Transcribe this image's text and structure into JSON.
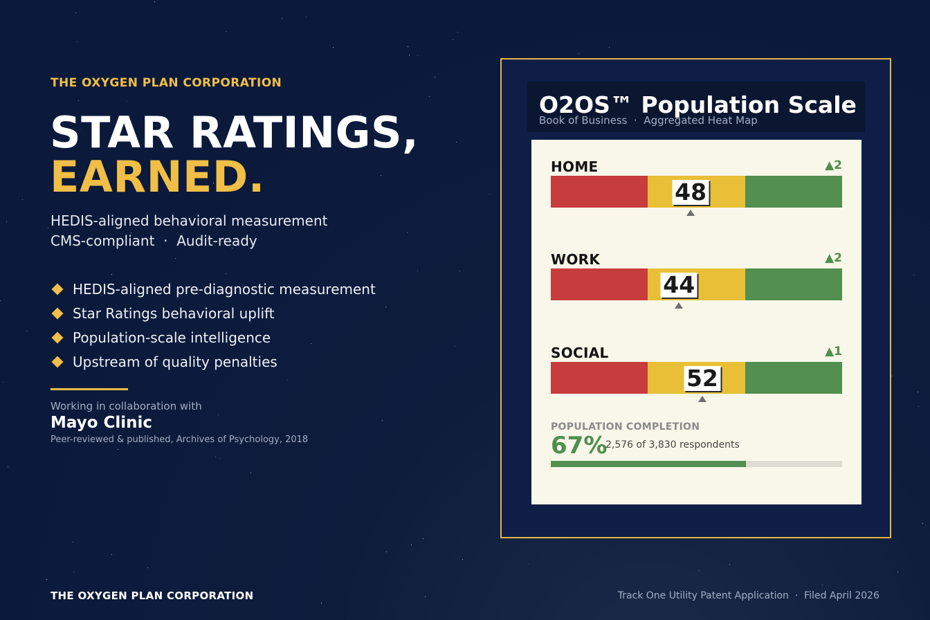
{
  "brand": {
    "top_label": "THE OXYGEN PLAN CORPORATION"
  },
  "hero": {
    "line1": "STAR RATINGS,",
    "line2": "EARNED."
  },
  "subtitle": {
    "line1": "HEDIS-aligned behavioral measurement",
    "line2": "CMS-compliant  ·  Audit-ready"
  },
  "bullets": [
    "HEDIS-aligned pre-diagnostic measurement",
    "Star Ratings behavioral uplift",
    "Population-scale intelligence",
    "Upstream of quality penalties"
  ],
  "collaboration": {
    "label": "Working in collaboration with",
    "name": "Mayo Clinic",
    "note": "Peer-reviewed & published, Archives of Psychology, 2018"
  },
  "panel": {
    "title": "O2OS™ Population Scale",
    "subtitle": "Book of Business  ·  Aggregated Heat Map",
    "scale_range": [
      0,
      100
    ],
    "metrics": [
      {
        "label": "HOME",
        "value": "48",
        "delta": "▲2"
      },
      {
        "label": "WORK",
        "value": "44",
        "delta": "▲2"
      },
      {
        "label": "SOCIAL",
        "value": "52",
        "delta": "▲1"
      }
    ],
    "population": {
      "label": "POPULATION COMPLETION",
      "percent": "67%",
      "respondents": "2,576 of 3,830 respondents",
      "fraction": 0.67
    }
  },
  "footer": {
    "left": "THE OXYGEN PLAN CORPORATION",
    "right": "Track One Utility Patent Application  ·  Filed April 2026"
  },
  "colors": {
    "background": "#0b1a3b",
    "accent": "#f1be47",
    "panel_border": "#e2b64a",
    "card": "#f9f7e9",
    "red": "#c73c3c",
    "yellow": "#e8bf36",
    "green": "#528f50"
  }
}
